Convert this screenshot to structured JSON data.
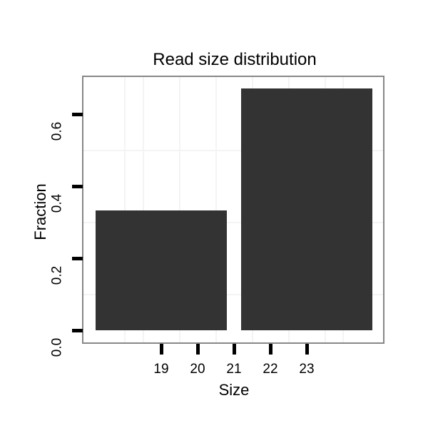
{
  "title": "Read size distribution",
  "x_axis": {
    "label": "Size",
    "tick_labels": [
      "19",
      "20",
      "21",
      "22",
      "23"
    ]
  },
  "y_axis": {
    "label": "Fraction",
    "tick_labels": [
      "0.0",
      "0.2",
      "0.4",
      "0.6"
    ]
  },
  "chart_data": {
    "type": "bar",
    "title": "Read size distribution",
    "xlabel": "Size",
    "ylabel": "Fraction",
    "x": [
      19,
      23
    ],
    "values": [
      0.334,
      0.672
    ],
    "bar_width": 3.6,
    "x_ticks": [
      19,
      20,
      21,
      22,
      23
    ],
    "y_ticks": [
      0.0,
      0.2,
      0.4,
      0.6
    ],
    "xlim": [
      16.8,
      25.2
    ],
    "ylim": [
      -0.034,
      0.705
    ],
    "minor_gridlines_x": [
      18,
      18.5,
      19.5,
      20.5,
      21.5,
      22.5,
      23.5,
      24
    ],
    "minor_gridlines_y": [
      0.1,
      0.3,
      0.5
    ],
    "grid_on": true,
    "legend": "none",
    "bar_color": "#333333",
    "grid_color": "#f4f4f4",
    "panel_border_color": "#878787",
    "tick_color": "#000000",
    "text_color": "#000000",
    "background_color": "#ffffff"
  }
}
